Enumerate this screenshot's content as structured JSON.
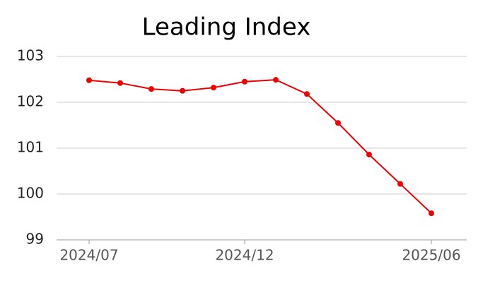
{
  "chart_data": {
    "type": "line",
    "title": "Leading Index",
    "categories": [
      "2024/07",
      null,
      null,
      null,
      null,
      "2024/12",
      null,
      null,
      null,
      null,
      null,
      "2025/06"
    ],
    "series": [
      {
        "name": "Leading Index",
        "color": "#ee0000",
        "values": [
          102.48,
          102.42,
          102.29,
          102.25,
          102.32,
          102.45,
          102.49,
          102.18,
          101.55,
          100.86,
          100.22,
          99.58
        ]
      }
    ],
    "ylim": [
      99,
      103
    ],
    "yticks": [
      99,
      100,
      101,
      102,
      103
    ],
    "grid": true
  }
}
